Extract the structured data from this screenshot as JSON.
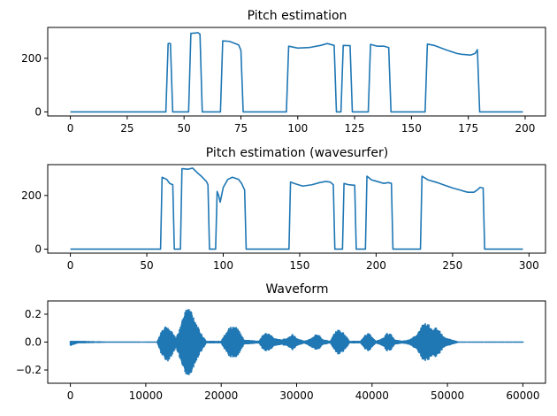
{
  "colors": {
    "line": "#1f77b4",
    "background": "#ffffff",
    "axes": "#000000"
  },
  "chart_data": [
    {
      "type": "line",
      "title": "Pitch estimation",
      "xlabel": "",
      "ylabel": "",
      "xlim": [
        -9.95,
        208.95
      ],
      "ylim": [
        -15,
        315
      ],
      "xticks": [
        0,
        25,
        50,
        75,
        100,
        125,
        150,
        175,
        200
      ],
      "yticks": [
        0,
        200
      ],
      "grid": false,
      "legend": "none",
      "series": [
        {
          "points": [
            [
              0,
              0
            ],
            [
              42,
              0
            ],
            [
              43,
              255
            ],
            [
              44,
              255
            ],
            [
              45,
              0
            ],
            [
              52,
              0
            ],
            [
              53,
              293
            ],
            [
              55,
              294
            ],
            [
              56,
              296
            ],
            [
              57,
              290
            ],
            [
              58,
              0
            ],
            [
              66,
              0
            ],
            [
              67,
              265
            ],
            [
              70,
              263
            ],
            [
              74,
              250
            ],
            [
              75,
              230
            ],
            [
              76,
              0
            ],
            [
              95,
              0
            ],
            [
              96,
              245
            ],
            [
              100,
              238
            ],
            [
              105,
              240
            ],
            [
              110,
              248
            ],
            [
              113,
              255
            ],
            [
              116,
              248
            ],
            [
              117,
              0
            ],
            [
              119,
              0
            ],
            [
              120,
              248
            ],
            [
              123,
              247
            ],
            [
              124,
              0
            ],
            [
              131,
              0
            ],
            [
              132,
              252
            ],
            [
              135,
              245
            ],
            [
              138,
              245
            ],
            [
              140,
              240
            ],
            [
              141,
              0
            ],
            [
              156,
              0
            ],
            [
              157,
              253
            ],
            [
              160,
              248
            ],
            [
              165,
              232
            ],
            [
              170,
              218
            ],
            [
              172,
              215
            ],
            [
              176,
              212
            ],
            [
              178,
              218
            ],
            [
              179,
              232
            ],
            [
              180,
              0
            ],
            [
              199,
              0
            ]
          ]
        }
      ]
    },
    {
      "type": "line",
      "title": "Pitch estimation (wavesurfer)",
      "xlabel": "",
      "ylabel": "",
      "xlim": [
        -14.8,
        310.8
      ],
      "ylim": [
        -15,
        315
      ],
      "xticks": [
        0,
        50,
        100,
        150,
        200,
        250,
        300
      ],
      "yticks": [
        0,
        200
      ],
      "grid": false,
      "legend": "none",
      "series": [
        {
          "points": [
            [
              0,
              0
            ],
            [
              59,
              0
            ],
            [
              60,
              268
            ],
            [
              63,
              260
            ],
            [
              65,
              245
            ],
            [
              67,
              240
            ],
            [
              68,
              0
            ],
            [
              72,
              0
            ],
            [
              73,
              300
            ],
            [
              77,
              298
            ],
            [
              80,
              302
            ],
            [
              83,
              285
            ],
            [
              86,
              270
            ],
            [
              89,
              252
            ],
            [
              90,
              240
            ],
            [
              91,
              0
            ],
            [
              95,
              0
            ],
            [
              96,
              215
            ],
            [
              97,
              200
            ],
            [
              98,
              175
            ],
            [
              100,
              230
            ],
            [
              103,
              260
            ],
            [
              106,
              268
            ],
            [
              110,
              260
            ],
            [
              112,
              245
            ],
            [
              114,
              220
            ],
            [
              115,
              0
            ],
            [
              143,
              0
            ],
            [
              144,
              250
            ],
            [
              148,
              242
            ],
            [
              152,
              235
            ],
            [
              158,
              240
            ],
            [
              163,
              248
            ],
            [
              167,
              252
            ],
            [
              170,
              250
            ],
            [
              172,
              240
            ],
            [
              173,
              0
            ],
            [
              178,
              0
            ],
            [
              179,
              245
            ],
            [
              182,
              240
            ],
            [
              186,
              238
            ],
            [
              187,
              0
            ],
            [
              193,
              0
            ],
            [
              194,
              272
            ],
            [
              197,
              258
            ],
            [
              199,
              255
            ],
            [
              202,
              250
            ],
            [
              205,
              245
            ],
            [
              208,
              248
            ],
            [
              210,
              245
            ],
            [
              211,
              0
            ],
            [
              229,
              0
            ],
            [
              230,
              272
            ],
            [
              234,
              258
            ],
            [
              240,
              248
            ],
            [
              245,
              238
            ],
            [
              250,
              228
            ],
            [
              255,
              220
            ],
            [
              258,
              215
            ],
            [
              260,
              212
            ],
            [
              264,
              212
            ],
            [
              266,
              220
            ],
            [
              268,
              230
            ],
            [
              270,
              228
            ],
            [
              271,
              0
            ],
            [
              296,
              0
            ]
          ]
        }
      ]
    },
    {
      "type": "area",
      "title": "Waveform",
      "xlabel": "",
      "ylabel": "",
      "xlim": [
        -3000,
        63000
      ],
      "ylim": [
        -0.295,
        0.295
      ],
      "xticks": [
        0,
        10000,
        20000,
        30000,
        40000,
        50000,
        60000
      ],
      "yticks": [
        -0.2,
        0.0,
        0.2
      ],
      "ytick_labels": [
        "−0.2",
        "0.0",
        "0.2"
      ],
      "grid": false,
      "legend": "none",
      "note_values": "envelope of signal amplitude (min/max) sampled along x",
      "series": [
        {
          "envelope": [
            [
              0,
              -0.03,
              0.01
            ],
            [
              1000,
              -0.01,
              0.01
            ],
            [
              5000,
              -0.005,
              0.005
            ],
            [
              11500,
              -0.005,
              0.005
            ],
            [
              12000,
              -0.08,
              0.07
            ],
            [
              12500,
              -0.13,
              0.12
            ],
            [
              13000,
              -0.14,
              0.1
            ],
            [
              13500,
              -0.1,
              0.08
            ],
            [
              14000,
              -0.04,
              0.03
            ],
            [
              14500,
              -0.12,
              0.1
            ],
            [
              15000,
              -0.2,
              0.2
            ],
            [
              15500,
              -0.26,
              0.26
            ],
            [
              16000,
              -0.24,
              0.24
            ],
            [
              16500,
              -0.18,
              0.17
            ],
            [
              17000,
              -0.1,
              0.1
            ],
            [
              17500,
              -0.06,
              0.05
            ],
            [
              18000,
              -0.01,
              0.01
            ],
            [
              20000,
              -0.01,
              0.01
            ],
            [
              20500,
              -0.06,
              0.06
            ],
            [
              21000,
              -0.1,
              0.1
            ],
            [
              21500,
              -0.12,
              0.12
            ],
            [
              22000,
              -0.11,
              0.11
            ],
            [
              22500,
              -0.08,
              0.08
            ],
            [
              23000,
              -0.02,
              0.02
            ],
            [
              25000,
              -0.01,
              0.01
            ],
            [
              25500,
              -0.05,
              0.05
            ],
            [
              26000,
              -0.07,
              0.07
            ],
            [
              26500,
              -0.06,
              0.06
            ],
            [
              27000,
              -0.03,
              0.03
            ],
            [
              28000,
              -0.02,
              0.02
            ],
            [
              29000,
              -0.04,
              0.04
            ],
            [
              29500,
              -0.06,
              0.06
            ],
            [
              30000,
              -0.03,
              0.03
            ],
            [
              31000,
              -0.01,
              0.01
            ],
            [
              32000,
              -0.04,
              0.03
            ],
            [
              32500,
              -0.06,
              0.06
            ],
            [
              33000,
              -0.05,
              0.05
            ],
            [
              33500,
              -0.02,
              0.02
            ],
            [
              34500,
              -0.01,
              0.01
            ],
            [
              35000,
              -0.06,
              0.07
            ],
            [
              35500,
              -0.09,
              0.09
            ],
            [
              36000,
              -0.08,
              0.08
            ],
            [
              36500,
              -0.05,
              0.05
            ],
            [
              37000,
              -0.01,
              0.01
            ],
            [
              38500,
              -0.01,
              0.01
            ],
            [
              39000,
              -0.05,
              0.05
            ],
            [
              39500,
              -0.07,
              0.07
            ],
            [
              40000,
              -0.04,
              0.04
            ],
            [
              40500,
              -0.01,
              0.01
            ],
            [
              41500,
              -0.03,
              0.03
            ],
            [
              42000,
              -0.07,
              0.07
            ],
            [
              42500,
              -0.06,
              0.06
            ],
            [
              43000,
              -0.02,
              0.02
            ],
            [
              44000,
              -0.01,
              0.01
            ],
            [
              45000,
              -0.02,
              0.02
            ],
            [
              46000,
              -0.06,
              0.06
            ],
            [
              46500,
              -0.12,
              0.12
            ],
            [
              47000,
              -0.14,
              0.14
            ],
            [
              47500,
              -0.13,
              0.13
            ],
            [
              48000,
              -0.1,
              0.09
            ],
            [
              48500,
              -0.11,
              0.11
            ],
            [
              49000,
              -0.08,
              0.08
            ],
            [
              49500,
              -0.04,
              0.04
            ],
            [
              50500,
              -0.02,
              0.02
            ],
            [
              51500,
              -0.005,
              0.005
            ],
            [
              60000,
              -0.005,
              0.005
            ]
          ]
        }
      ]
    }
  ]
}
